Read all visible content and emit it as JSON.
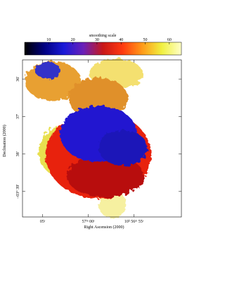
{
  "chart_data": {
    "type": "image",
    "colorbar": {
      "label": "smoothing scale",
      "lim": [
        0,
        65
      ],
      "ticks": [
        10,
        20,
        30,
        40,
        50,
        60
      ],
      "colormap": [
        "#000000",
        "#000080",
        "#1a1ad8",
        "#6a20b8",
        "#c81818",
        "#ff3a10",
        "#ff9a18",
        "#f0f040",
        "#ffffc8"
      ]
    },
    "xlabel": "Right Ascension (2000)",
    "ylabel": "Declination (2000)",
    "xlim": [
      67.2,
      49.8
    ],
    "xticks": [
      {
        "value": 65,
        "label": "05ˢ"
      },
      {
        "value": 60,
        "label": "57ᵐ 00ˢ"
      },
      {
        "value": 55,
        "label": "10ʰ 56ᵐ 55ˢ"
      }
    ],
    "ylim": [
      -39.68,
      -35.49
    ],
    "yticks": [
      {
        "value": -36,
        "label": "36′"
      },
      {
        "value": -37,
        "label": "37′"
      },
      {
        "value": -38,
        "label": "38′"
      },
      {
        "value": -39,
        "label": "−03° 39′"
      }
    ]
  }
}
